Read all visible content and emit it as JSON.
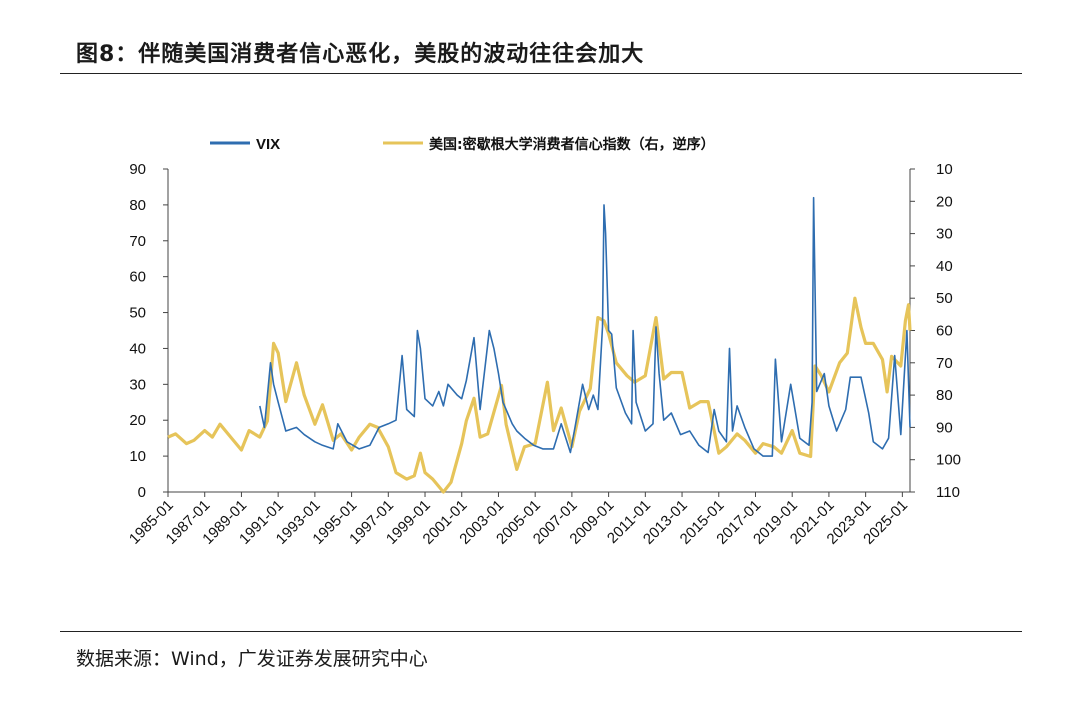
{
  "header": {
    "title": "图8：伴随美国消费者信心恶化，美股的波动往往会加大"
  },
  "footer": {
    "source": "数据来源：Wind，广发证券发展研究中心"
  },
  "colors": {
    "vix": "#2e6db0",
    "sentiment": "#e6c45a"
  },
  "chart_data": {
    "type": "line",
    "legend_placement": "top",
    "x_range": [
      "1985-01",
      "2025-06"
    ],
    "x_ticks": [
      "1985-01",
      "1987-01",
      "1989-01",
      "1991-01",
      "1993-01",
      "1995-01",
      "1997-01",
      "1999-01",
      "2001-01",
      "2003-01",
      "2005-01",
      "2007-01",
      "2009-01",
      "2011-01",
      "2013-01",
      "2015-01",
      "2017-01",
      "2019-01",
      "2021-01",
      "2023-01",
      "2025-01"
    ],
    "y_left": {
      "min": 0,
      "max": 90,
      "ticks": [
        0,
        10,
        20,
        30,
        40,
        50,
        60,
        70,
        80,
        90
      ]
    },
    "y_right": {
      "min": 10,
      "max": 110,
      "inverted": true,
      "ticks": [
        10,
        20,
        30,
        40,
        50,
        60,
        70,
        80,
        90,
        100,
        110
      ]
    },
    "series": [
      {
        "name": "VIX",
        "axis": "left",
        "points": [
          [
            "1990-01",
            24
          ],
          [
            "1990-04",
            18
          ],
          [
            "1990-08",
            36
          ],
          [
            "1990-10",
            30
          ],
          [
            "1991-01",
            25
          ],
          [
            "1991-06",
            17
          ],
          [
            "1992-01",
            18
          ],
          [
            "1992-06",
            16
          ],
          [
            "1993-01",
            14
          ],
          [
            "1993-06",
            13
          ],
          [
            "1994-01",
            12
          ],
          [
            "1994-04",
            19
          ],
          [
            "1994-10",
            14
          ],
          [
            "1995-06",
            12
          ],
          [
            "1996-01",
            13
          ],
          [
            "1996-07",
            18
          ],
          [
            "1997-01",
            19
          ],
          [
            "1997-06",
            20
          ],
          [
            "1997-10",
            38
          ],
          [
            "1998-01",
            23
          ],
          [
            "1998-06",
            21
          ],
          [
            "1998-08",
            45
          ],
          [
            "1998-10",
            40
          ],
          [
            "1999-01",
            26
          ],
          [
            "1999-06",
            24
          ],
          [
            "1999-10",
            28
          ],
          [
            "2000-01",
            24
          ],
          [
            "2000-04",
            30
          ],
          [
            "2000-10",
            27
          ],
          [
            "2001-01",
            26
          ],
          [
            "2001-04",
            31
          ],
          [
            "2001-09",
            43
          ],
          [
            "2002-01",
            23
          ],
          [
            "2002-07",
            45
          ],
          [
            "2002-10",
            40
          ],
          [
            "2003-01",
            33
          ],
          [
            "2003-04",
            25
          ],
          [
            "2003-10",
            19
          ],
          [
            "2004-01",
            17
          ],
          [
            "2004-06",
            15
          ],
          [
            "2004-12",
            13
          ],
          [
            "2005-06",
            12
          ],
          [
            "2006-01",
            12
          ],
          [
            "2006-06",
            19
          ],
          [
            "2006-12",
            11
          ],
          [
            "2007-03",
            18
          ],
          [
            "2007-08",
            30
          ],
          [
            "2007-12",
            23
          ],
          [
            "2008-03",
            27
          ],
          [
            "2008-06",
            23
          ],
          [
            "2008-09",
            46
          ],
          [
            "2008-10",
            80
          ],
          [
            "2008-11",
            72
          ],
          [
            "2009-01",
            45
          ],
          [
            "2009-03",
            44
          ],
          [
            "2009-06",
            29
          ],
          [
            "2009-12",
            22
          ],
          [
            "2010-04",
            19
          ],
          [
            "2010-05",
            45
          ],
          [
            "2010-07",
            25
          ],
          [
            "2011-01",
            17
          ],
          [
            "2011-06",
            19
          ],
          [
            "2011-08",
            46
          ],
          [
            "2011-10",
            33
          ],
          [
            "2012-01",
            20
          ],
          [
            "2012-06",
            22
          ],
          [
            "2012-12",
            16
          ],
          [
            "2013-06",
            17
          ],
          [
            "2013-12",
            13
          ],
          [
            "2014-06",
            11
          ],
          [
            "2014-10",
            23
          ],
          [
            "2015-01",
            17
          ],
          [
            "2015-06",
            14
          ],
          [
            "2015-08",
            40
          ],
          [
            "2015-10",
            17
          ],
          [
            "2016-01",
            24
          ],
          [
            "2016-06",
            18
          ],
          [
            "2016-12",
            12
          ],
          [
            "2017-06",
            10
          ],
          [
            "2017-12",
            10
          ],
          [
            "2018-02",
            37
          ],
          [
            "2018-06",
            14
          ],
          [
            "2018-12",
            30
          ],
          [
            "2019-06",
            15
          ],
          [
            "2019-12",
            13
          ],
          [
            "2020-02",
            25
          ],
          [
            "2020-03",
            82
          ],
          [
            "2020-05",
            28
          ],
          [
            "2020-10",
            33
          ],
          [
            "2021-01",
            24
          ],
          [
            "2021-06",
            17
          ],
          [
            "2021-12",
            23
          ],
          [
            "2022-03",
            32
          ],
          [
            "2022-06",
            32
          ],
          [
            "2022-10",
            32
          ],
          [
            "2023-03",
            22
          ],
          [
            "2023-06",
            14
          ],
          [
            "2023-12",
            12
          ],
          [
            "2024-04",
            15
          ],
          [
            "2024-08",
            38
          ],
          [
            "2024-12",
            16
          ],
          [
            "2025-04",
            45
          ],
          [
            "2025-06",
            18
          ]
        ]
      },
      {
        "name": "美国:密歇根大学消费者信心指数（右，逆序）",
        "axis": "right",
        "points": [
          [
            "1985-01",
            93
          ],
          [
            "1985-06",
            92
          ],
          [
            "1986-01",
            95
          ],
          [
            "1986-06",
            94
          ],
          [
            "1987-01",
            91
          ],
          [
            "1987-06",
            93
          ],
          [
            "1987-11",
            89
          ],
          [
            "1988-06",
            93
          ],
          [
            "1989-01",
            97
          ],
          [
            "1989-06",
            91
          ],
          [
            "1990-01",
            93
          ],
          [
            "1990-06",
            88
          ],
          [
            "1990-10",
            64
          ],
          [
            "1991-01",
            67
          ],
          [
            "1991-06",
            82
          ],
          [
            "1992-01",
            70
          ],
          [
            "1992-06",
            80
          ],
          [
            "1993-01",
            89
          ],
          [
            "1993-06",
            83
          ],
          [
            "1994-01",
            94
          ],
          [
            "1994-06",
            92
          ],
          [
            "1995-01",
            97
          ],
          [
            "1995-06",
            93
          ],
          [
            "1996-01",
            89
          ],
          [
            "1996-06",
            90
          ],
          [
            "1997-01",
            96
          ],
          [
            "1997-06",
            104
          ],
          [
            "1998-01",
            106
          ],
          [
            "1998-06",
            105
          ],
          [
            "1998-10",
            98
          ],
          [
            "1999-01",
            104
          ],
          [
            "1999-06",
            106
          ],
          [
            "2000-01",
            112
          ],
          [
            "2000-06",
            107
          ],
          [
            "2001-01",
            95
          ],
          [
            "2001-04",
            88
          ],
          [
            "2001-09",
            81
          ],
          [
            "2002-01",
            93
          ],
          [
            "2002-06",
            92
          ],
          [
            "2003-03",
            77
          ],
          [
            "2003-06",
            89
          ],
          [
            "2004-01",
            103
          ],
          [
            "2004-06",
            96
          ],
          [
            "2005-01",
            95
          ],
          [
            "2005-09",
            76
          ],
          [
            "2006-01",
            91
          ],
          [
            "2006-06",
            84
          ],
          [
            "2007-01",
            96
          ],
          [
            "2007-06",
            85
          ],
          [
            "2008-01",
            78
          ],
          [
            "2008-06",
            56
          ],
          [
            "2008-10",
            57
          ],
          [
            "2009-01",
            61
          ],
          [
            "2009-06",
            70
          ],
          [
            "2010-01",
            74
          ],
          [
            "2010-06",
            76
          ],
          [
            "2011-01",
            74
          ],
          [
            "2011-08",
            56
          ],
          [
            "2012-01",
            75
          ],
          [
            "2012-06",
            73
          ],
          [
            "2013-01",
            73
          ],
          [
            "2013-06",
            84
          ],
          [
            "2014-01",
            82
          ],
          [
            "2014-06",
            82
          ],
          [
            "2015-01",
            98
          ],
          [
            "2015-06",
            96
          ],
          [
            "2016-01",
            92
          ],
          [
            "2016-06",
            94
          ],
          [
            "2017-01",
            98
          ],
          [
            "2017-06",
            95
          ],
          [
            "2018-01",
            96
          ],
          [
            "2018-06",
            98
          ],
          [
            "2019-01",
            91
          ],
          [
            "2019-06",
            98
          ],
          [
            "2020-01",
            99
          ],
          [
            "2020-04",
            71
          ],
          [
            "2020-08",
            74
          ],
          [
            "2021-01",
            79
          ],
          [
            "2021-08",
            70
          ],
          [
            "2022-01",
            67
          ],
          [
            "2022-06",
            50
          ],
          [
            "2022-10",
            59
          ],
          [
            "2023-01",
            64
          ],
          [
            "2023-06",
            64
          ],
          [
            "2023-12",
            69
          ],
          [
            "2024-03",
            79
          ],
          [
            "2024-06",
            68
          ],
          [
            "2024-12",
            71
          ],
          [
            "2025-03",
            57
          ],
          [
            "2025-05",
            52
          ],
          [
            "2025-06",
            60
          ]
        ]
      }
    ]
  }
}
